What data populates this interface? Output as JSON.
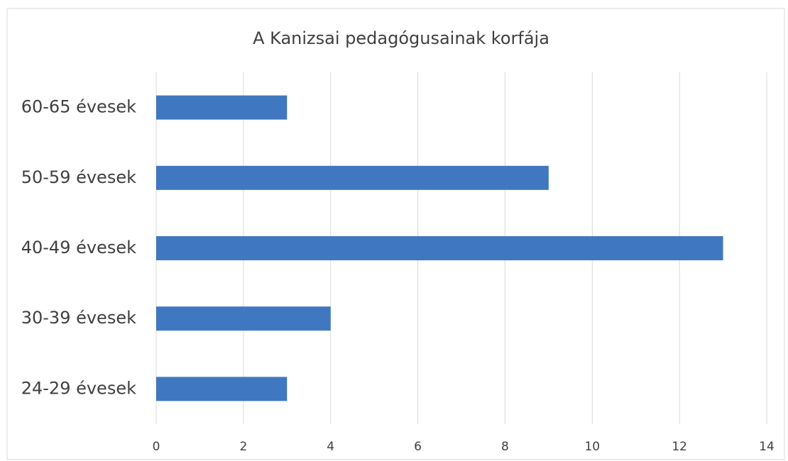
{
  "chart_data": {
    "type": "bar",
    "orientation": "horizontal",
    "title": "A Kanizsai pedagógusainak korfája",
    "categories": [
      "60-65 évesek",
      "50-59 évesek",
      "40-49 évesek",
      "30-39 évesek",
      "24-29 évesek"
    ],
    "values": [
      3,
      9,
      13,
      4,
      3
    ],
    "color": "#3f78c0",
    "xlim": [
      0,
      14
    ],
    "xticks": [
      0,
      2,
      4,
      6,
      8,
      10,
      12,
      14
    ],
    "grid": true
  }
}
